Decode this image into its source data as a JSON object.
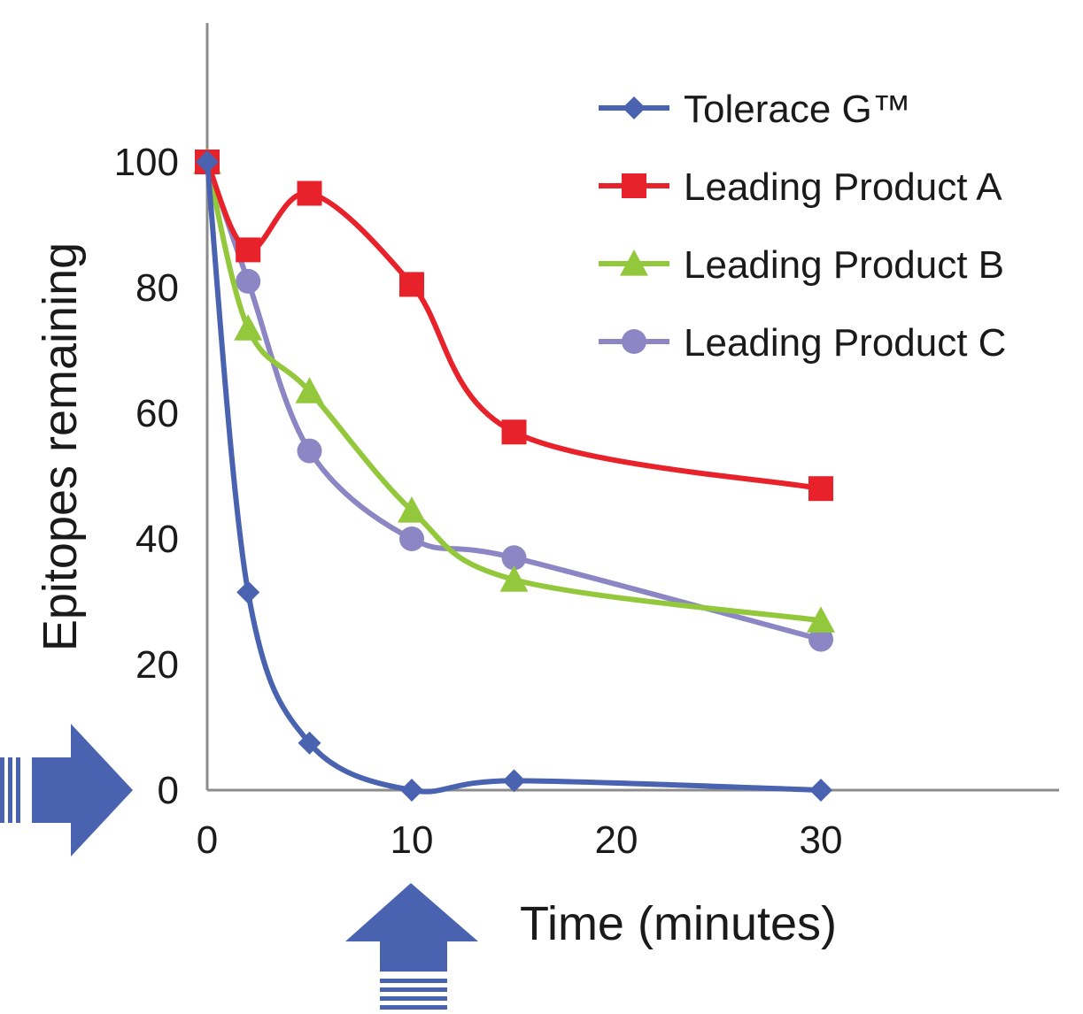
{
  "chart_data": {
    "type": "line",
    "xlabel": "Time (minutes)",
    "ylabel": "Epitopes remaining",
    "x_ticks": [
      "0",
      "10",
      "20",
      "30"
    ],
    "y_ticks": [
      "0",
      "20",
      "40",
      "60",
      "80",
      "100"
    ],
    "xlim": [
      0,
      41.5
    ],
    "ylim": [
      0,
      120
    ],
    "grid": false,
    "legend_position": "top-right",
    "series": [
      {
        "name": "Tolerace G™",
        "marker": "diamond",
        "color": "#4a63b0",
        "x": [
          0,
          2,
          5,
          10,
          15,
          30
        ],
        "values": [
          100,
          31.5,
          7.5,
          0,
          1.5,
          0
        ]
      },
      {
        "name": "Leading Product A",
        "marker": "square",
        "color": "#e8222a",
        "x": [
          0,
          2,
          5,
          10,
          15,
          30
        ],
        "values": [
          100,
          86,
          95,
          80.5,
          57,
          48
        ]
      },
      {
        "name": "Leading Product B",
        "marker": "triangle",
        "color": "#94c83c",
        "x": [
          0,
          2,
          5,
          10,
          15,
          30
        ],
        "values": [
          100,
          73.5,
          63.5,
          44.5,
          33.5,
          27
        ]
      },
      {
        "name": "Leading Product C",
        "marker": "circle",
        "color": "#8c87c4",
        "x": [
          0,
          2,
          5,
          10,
          15,
          30
        ],
        "values": [
          100,
          81,
          54,
          40,
          37,
          24
        ]
      }
    ],
    "annotations": [
      {
        "type": "arrow",
        "direction": "right",
        "points_to": "y=0",
        "color": "#4a63b0"
      },
      {
        "type": "arrow",
        "direction": "up",
        "points_to": "x=10",
        "color": "#4a63b0"
      }
    ]
  }
}
